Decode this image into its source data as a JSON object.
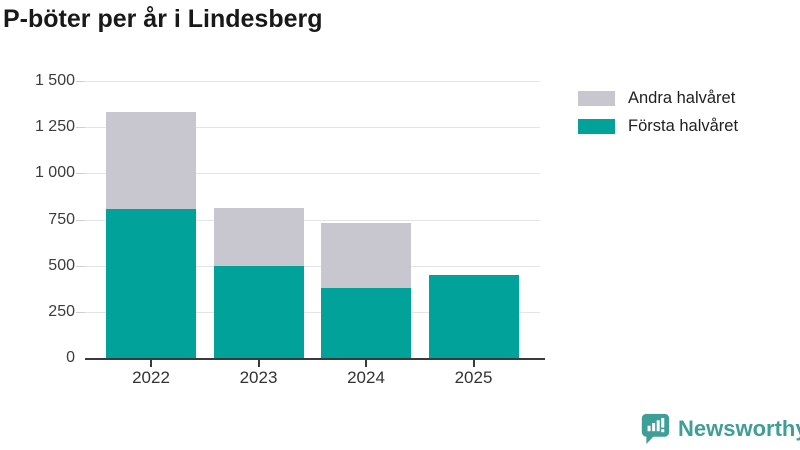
{
  "header": {
    "title": "P-böter per år i Lindesberg"
  },
  "legend": {
    "items": [
      {
        "label": "Andra halvåret",
        "color": "#c8c6ce"
      },
      {
        "label": "Första halvåret",
        "color": "#00a29a"
      }
    ]
  },
  "footer": {
    "brand": "Newsworthy",
    "brand_color": "#3f9e97",
    "logo_icon": "speech-bubble-with-bar-chart-and-exclamation"
  },
  "colors": {
    "first_half_bar": "#00a29a",
    "second_half_bar": "#c8c6ce",
    "gridline": "#e4e4e4",
    "axis": "#3a3a3a",
    "title_text": "#191919",
    "tick_text": "#3c3c3c",
    "background": "#ffffff"
  },
  "chart_data": {
    "type": "bar",
    "stacked": true,
    "title": "P-böter per år i Lindesberg",
    "categories": [
      "2022",
      "2023",
      "2024",
      "2025"
    ],
    "series": [
      {
        "name": "Första halvåret",
        "color": "#00a29a",
        "values": [
          805,
          500,
          380,
          450
        ]
      },
      {
        "name": "Andra halvåret",
        "color": "#c8c6ce",
        "values": [
          525,
          310,
          350,
          0
        ]
      }
    ],
    "totals": [
      1330,
      810,
      730,
      450
    ],
    "xlabel": "",
    "ylabel": "",
    "ylim": [
      0,
      1500
    ],
    "yticks": [
      0,
      250,
      500,
      750,
      1000,
      1250,
      1500
    ],
    "ytick_labels": [
      "0",
      "250",
      "500",
      "750",
      "1 000",
      "1 250",
      "1 500"
    ],
    "grid": true,
    "legend_position": "top-right"
  }
}
